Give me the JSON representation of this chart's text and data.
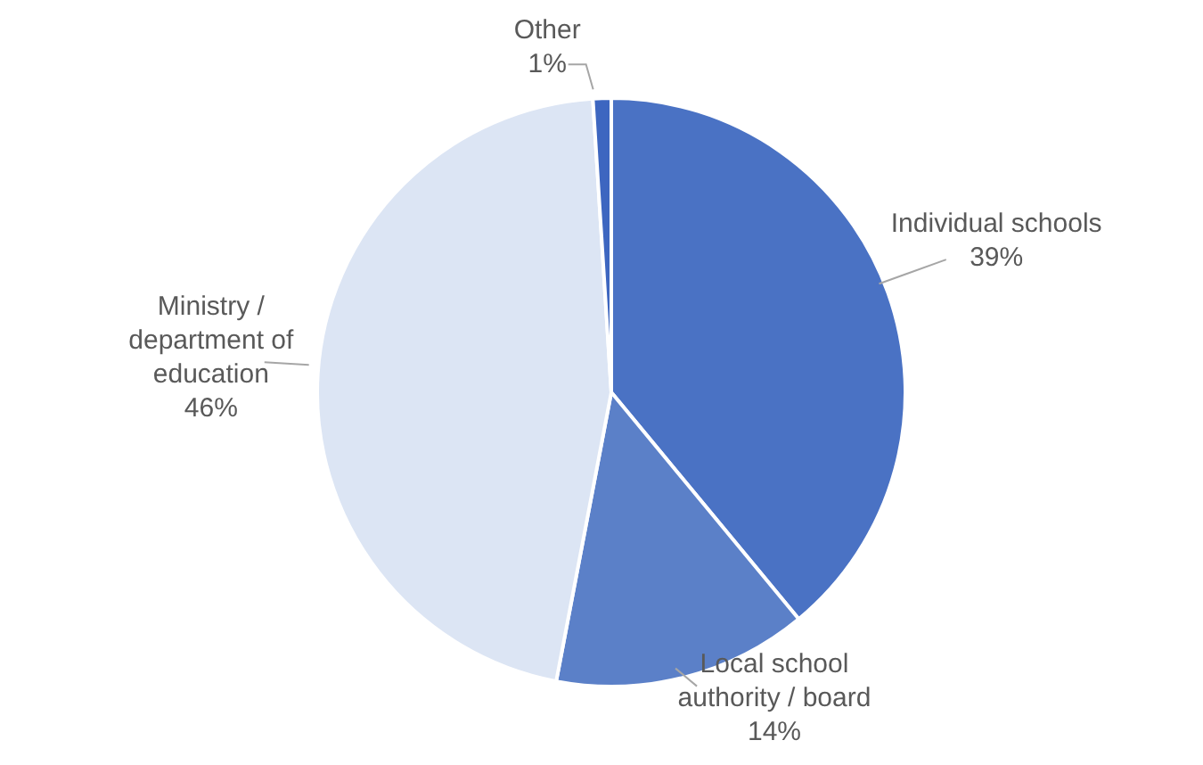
{
  "chart_data": {
    "type": "pie",
    "categories": [
      "Individual schools",
      "Local school authority / board",
      "Ministry / department of education",
      "Other"
    ],
    "values": [
      39,
      14,
      46,
      1
    ],
    "value_labels": [
      "39%",
      "14%",
      "46%",
      "1%"
    ],
    "colors": [
      "#4a72c4",
      "#5b80c8",
      "#dce5f4",
      "#3d66c0"
    ],
    "legend": false
  }
}
